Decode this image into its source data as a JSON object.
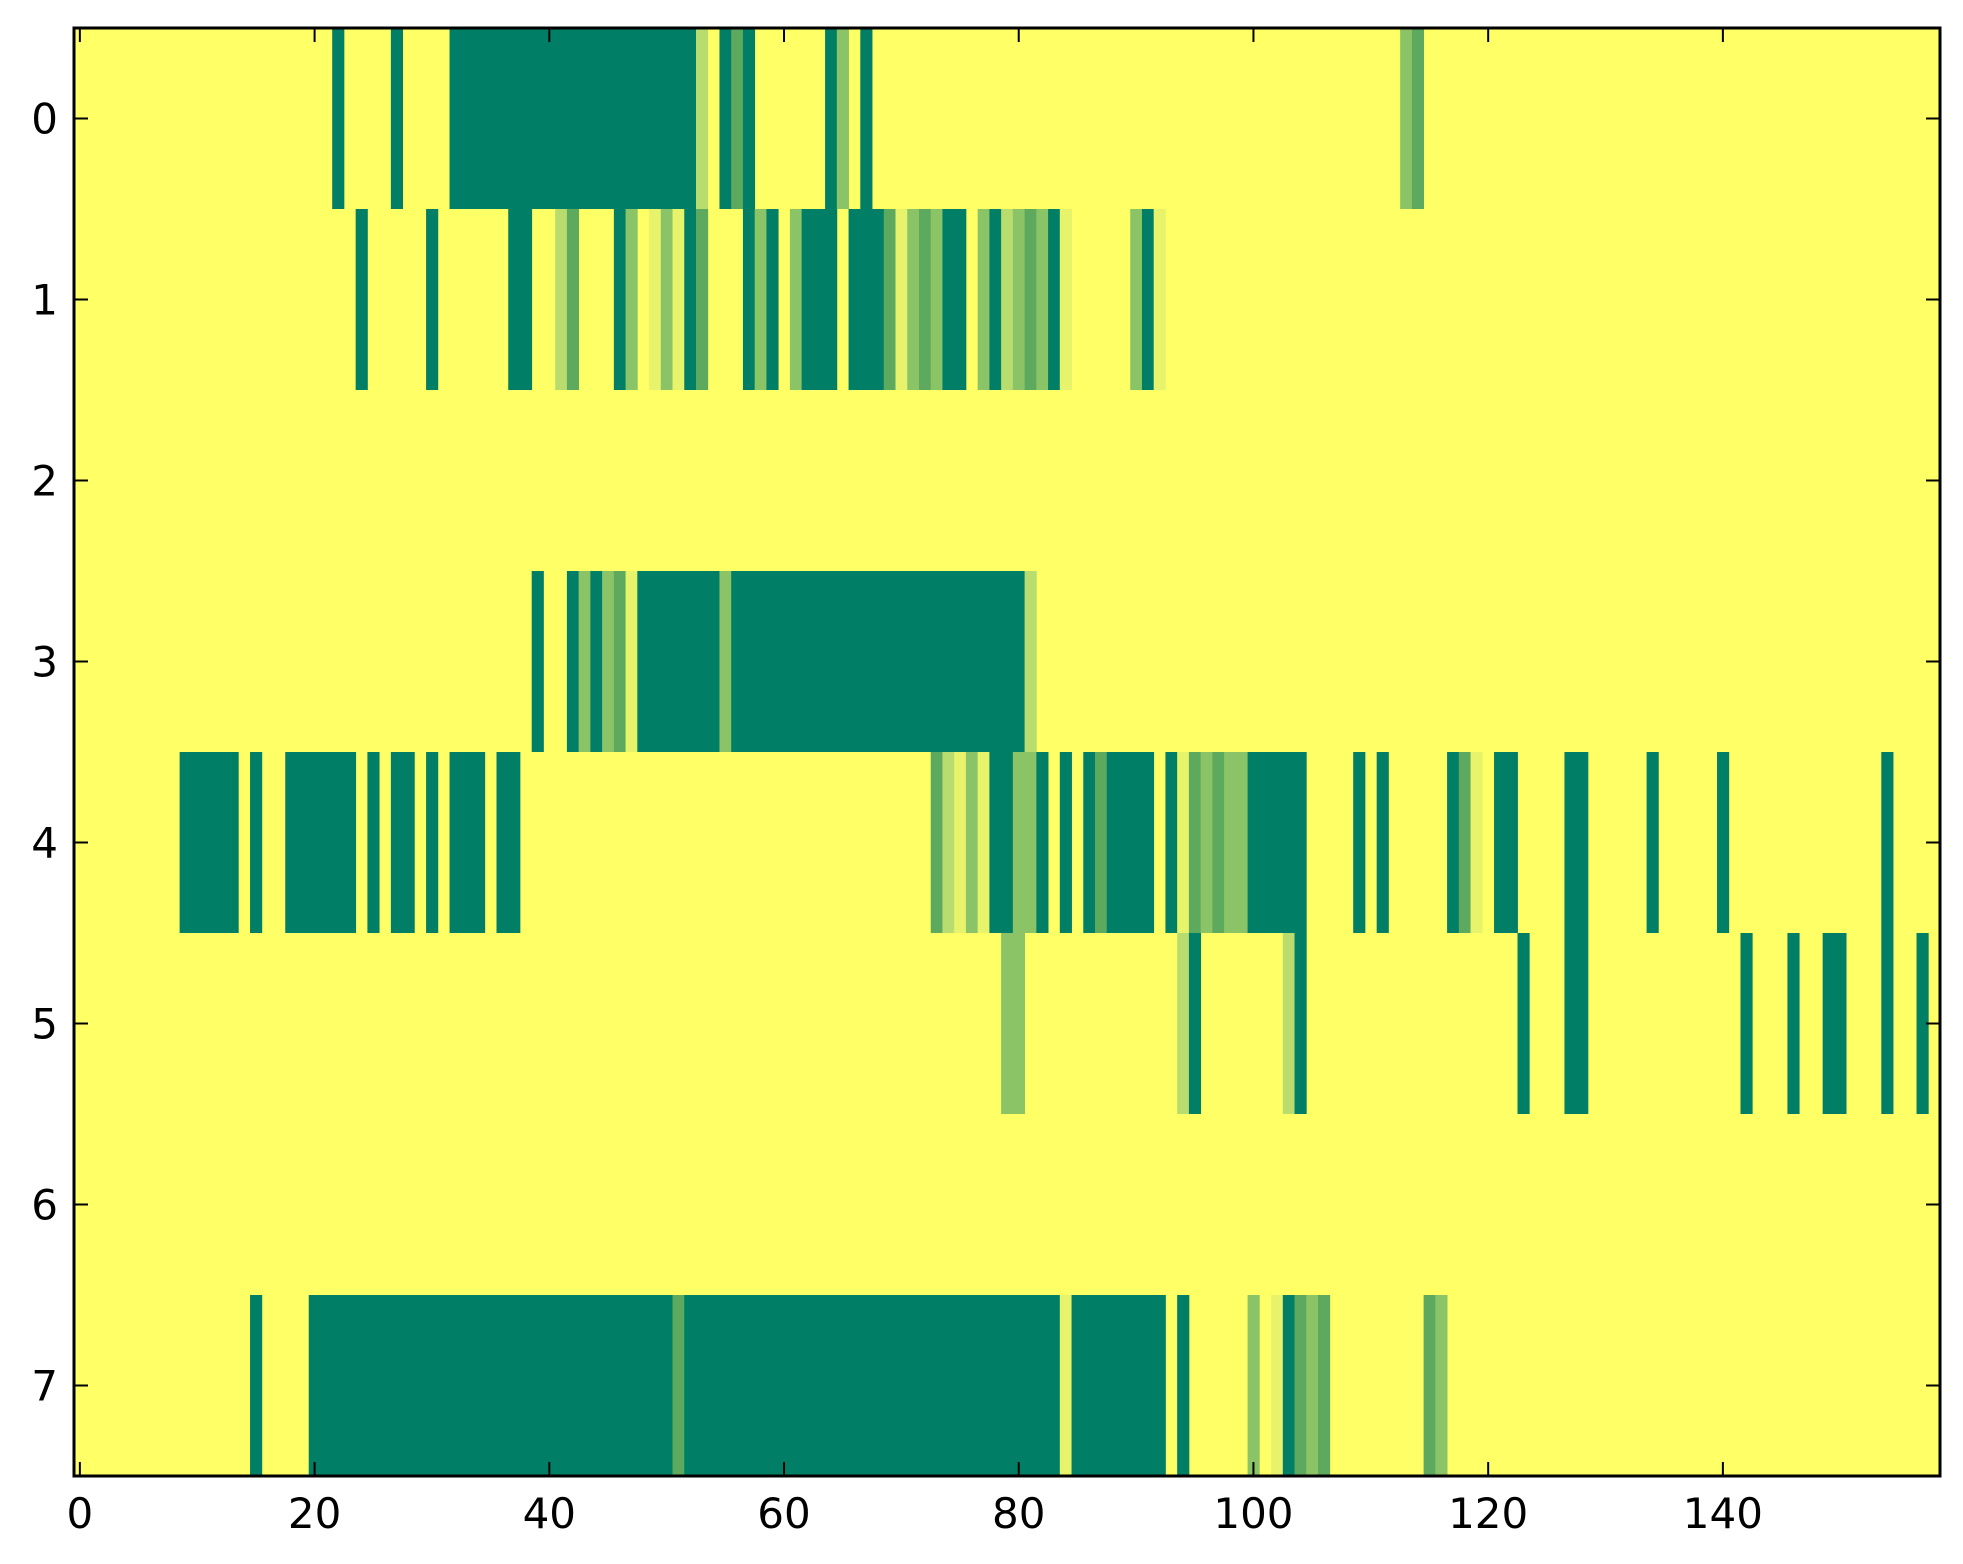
{
  "chart_data": {
    "type": "heatmap",
    "title": "",
    "xlabel": "",
    "ylabel": "",
    "xlim": [
      -0.5,
      158.5
    ],
    "ylim": [
      7.5,
      -0.5
    ],
    "x_ticks": [
      0,
      20,
      40,
      60,
      80,
      100,
      120,
      140
    ],
    "x_tick_labels": [
      "0",
      "20",
      "40",
      "60",
      "80",
      "100",
      "120",
      "140"
    ],
    "y_ticks": [
      0,
      1,
      2,
      3,
      4,
      5,
      6,
      7
    ],
    "y_tick_labels": [
      "0",
      "1",
      "2",
      "3",
      "4",
      "5",
      "6",
      "7"
    ],
    "columns": 159,
    "rows": 8,
    "background_value": 0,
    "colormap": "summer_r",
    "colors": {
      "level_0": "#ffff66",
      "level_1": "#e8f36c",
      "level_2": "#b9dc6f",
      "level_3": "#8bc466",
      "level_4": "#5daa5e",
      "level_5": "#007f66"
    },
    "grid": false,
    "legend": "none",
    "cells": [
      {
        "row": 0,
        "segments": [
          [
            22,
            1,
            5
          ],
          [
            27,
            1,
            5
          ],
          [
            32,
            21,
            5
          ],
          [
            53,
            1,
            2
          ],
          [
            55,
            1,
            5
          ],
          [
            56,
            1,
            4
          ],
          [
            57,
            1,
            5
          ],
          [
            64,
            1,
            5
          ],
          [
            65,
            1,
            3
          ],
          [
            67,
            1,
            5
          ],
          [
            113,
            1,
            3
          ],
          [
            114,
            1,
            4
          ]
        ]
      },
      {
        "row": 1,
        "segments": [
          [
            24,
            1,
            5
          ],
          [
            30,
            1,
            5
          ],
          [
            37,
            2,
            5
          ],
          [
            41,
            1,
            2
          ],
          [
            42,
            1,
            4
          ],
          [
            46,
            1,
            5
          ],
          [
            47,
            1,
            3
          ],
          [
            49,
            1,
            1
          ],
          [
            50,
            1,
            3
          ],
          [
            51,
            1,
            1
          ],
          [
            52,
            1,
            5
          ],
          [
            53,
            1,
            4
          ],
          [
            57,
            1,
            5
          ],
          [
            58,
            1,
            3
          ],
          [
            59,
            1,
            5
          ],
          [
            61,
            1,
            3
          ],
          [
            62,
            3,
            5
          ],
          [
            66,
            3,
            5
          ],
          [
            69,
            1,
            4
          ],
          [
            70,
            1,
            1
          ],
          [
            71,
            1,
            3
          ],
          [
            72,
            1,
            4
          ],
          [
            73,
            1,
            3
          ],
          [
            74,
            2,
            5
          ],
          [
            77,
            1,
            3
          ],
          [
            78,
            1,
            5
          ],
          [
            79,
            1,
            2
          ],
          [
            80,
            1,
            3
          ],
          [
            81,
            1,
            4
          ],
          [
            82,
            1,
            3
          ],
          [
            83,
            1,
            5
          ],
          [
            84,
            1,
            1
          ],
          [
            90,
            1,
            3
          ],
          [
            91,
            1,
            5
          ],
          [
            92,
            1,
            1
          ]
        ]
      },
      {
        "row": 3,
        "segments": [
          [
            39,
            1,
            5
          ],
          [
            42,
            1,
            5
          ],
          [
            43,
            1,
            3
          ],
          [
            44,
            1,
            5
          ],
          [
            45,
            1,
            3
          ],
          [
            46,
            1,
            4
          ],
          [
            47,
            1,
            1
          ],
          [
            48,
            1,
            5
          ],
          [
            49,
            6,
            5
          ],
          [
            55,
            1,
            3
          ],
          [
            56,
            25,
            5
          ],
          [
            81,
            1,
            2
          ]
        ]
      },
      {
        "row": 4,
        "segments": [
          [
            9,
            5,
            5
          ],
          [
            15,
            1,
            5
          ],
          [
            18,
            6,
            5
          ],
          [
            25,
            1,
            5
          ],
          [
            27,
            2,
            5
          ],
          [
            30,
            1,
            5
          ],
          [
            32,
            3,
            5
          ],
          [
            36,
            2,
            5
          ],
          [
            73,
            1,
            4
          ],
          [
            74,
            1,
            2
          ],
          [
            75,
            1,
            1
          ],
          [
            76,
            1,
            3
          ],
          [
            77,
            1,
            1
          ],
          [
            78,
            2,
            5
          ],
          [
            80,
            2,
            3
          ],
          [
            82,
            1,
            5
          ],
          [
            84,
            1,
            5
          ],
          [
            86,
            1,
            5
          ],
          [
            87,
            1,
            4
          ],
          [
            88,
            4,
            5
          ],
          [
            93,
            1,
            5
          ],
          [
            94,
            1,
            1
          ],
          [
            95,
            1,
            4
          ],
          [
            96,
            1,
            3
          ],
          [
            97,
            1,
            4
          ],
          [
            98,
            2,
            3
          ],
          [
            100,
            4,
            5
          ],
          [
            104,
            1,
            5
          ],
          [
            109,
            1,
            5
          ],
          [
            111,
            1,
            5
          ],
          [
            117,
            1,
            5
          ],
          [
            118,
            1,
            4
          ],
          [
            119,
            1,
            1
          ],
          [
            121,
            2,
            5
          ],
          [
            127,
            2,
            5
          ],
          [
            134,
            1,
            5
          ],
          [
            140,
            1,
            5
          ],
          [
            154,
            1,
            5
          ]
        ]
      },
      {
        "row": 5,
        "segments": [
          [
            79,
            2,
            3
          ],
          [
            94,
            1,
            2
          ],
          [
            95,
            1,
            5
          ],
          [
            103,
            1,
            2
          ],
          [
            104,
            1,
            5
          ],
          [
            123,
            1,
            5
          ],
          [
            127,
            2,
            5
          ],
          [
            142,
            1,
            5
          ],
          [
            146,
            1,
            5
          ],
          [
            149,
            2,
            5
          ],
          [
            154,
            1,
            5
          ],
          [
            157,
            1,
            5
          ]
        ]
      },
      {
        "row": 7,
        "segments": [
          [
            15,
            1,
            5
          ],
          [
            20,
            31,
            5
          ],
          [
            51,
            1,
            4
          ],
          [
            52,
            32,
            5
          ],
          [
            84,
            1,
            1
          ],
          [
            85,
            1,
            5
          ],
          [
            86,
            7,
            5
          ],
          [
            94,
            1,
            5
          ],
          [
            100,
            1,
            3
          ],
          [
            102,
            1,
            1
          ],
          [
            103,
            1,
            5
          ],
          [
            104,
            1,
            4
          ],
          [
            105,
            1,
            3
          ],
          [
            106,
            1,
            4
          ],
          [
            115,
            1,
            4
          ],
          [
            116,
            1,
            3
          ]
        ]
      }
    ]
  }
}
